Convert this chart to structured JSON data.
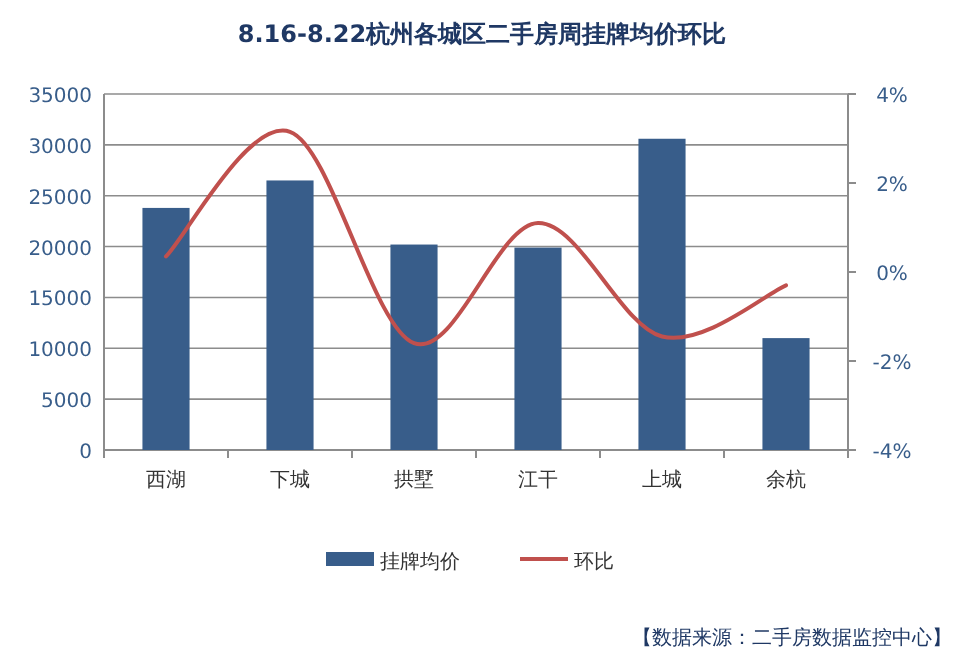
{
  "chart_data": {
    "type": "bar",
    "title": "8.16-8.22杭州各城区二手房周挂牌均价环比",
    "categories": [
      "西湖",
      "下城",
      "拱墅",
      "江干",
      "上城",
      "余杭"
    ],
    "series": [
      {
        "name": "挂牌均价",
        "color": "#385d8a",
        "values": [
          23800,
          26500,
          20200,
          19900,
          30600,
          11000
        ]
      },
      {
        "name": "环比",
        "type": "line",
        "axis": "y2",
        "color": "#c0504d",
        "values": [
          0.35,
          3.15,
          -1.6,
          1.1,
          -1.45,
          -0.3
        ]
      }
    ],
    "ylim": [
      0,
      35000
    ],
    "yticks": [
      0,
      5000,
      10000,
      15000,
      20000,
      25000,
      30000,
      35000
    ],
    "y2lim": [
      -4,
      4
    ],
    "y2ticks": [
      {
        "value": -4,
        "label": "-4%"
      },
      {
        "value": -2,
        "label": "-2%"
      },
      {
        "value": 0,
        "label": "0%"
      },
      {
        "value": 2,
        "label": "2%"
      },
      {
        "value": 4,
        "label": "4%"
      }
    ],
    "grid": "y",
    "legend": "bottom",
    "annotations": [
      "【数据来源：二手房数据监控中心】"
    ]
  }
}
